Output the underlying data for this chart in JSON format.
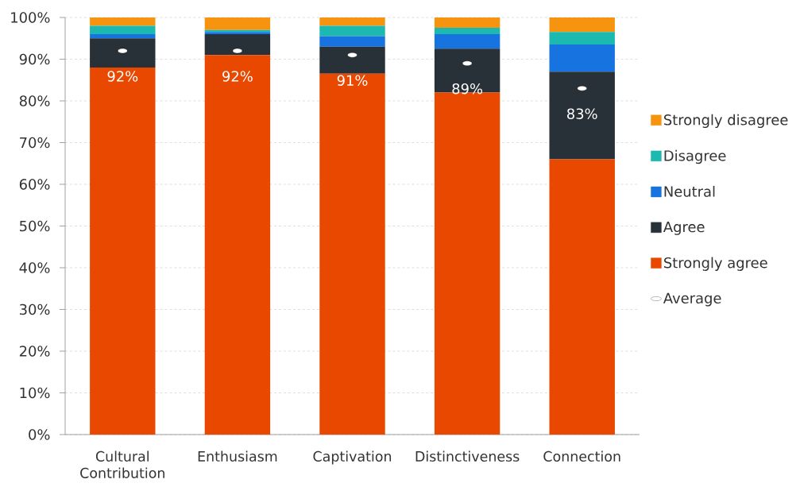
{
  "chart_data": {
    "type": "bar",
    "stacked": true,
    "categories": [
      "Cultural Contribution",
      "Enthusiasm",
      "Captivation",
      "Distinctiveness",
      "Connection"
    ],
    "series": [
      {
        "name": "Strongly agree",
        "color": "#e94800",
        "values": [
          88,
          91,
          86.5,
          82,
          66
        ]
      },
      {
        "name": "Agree",
        "color": "#283038",
        "values": [
          7,
          5,
          6.5,
          10.5,
          21
        ]
      },
      {
        "name": "Neutral",
        "color": "#1673e0",
        "values": [
          1,
          0.5,
          2.5,
          3.5,
          6.5
        ]
      },
      {
        "name": "Disagree",
        "color": "#1cb9b0",
        "values": [
          2,
          0.5,
          2.5,
          1.5,
          3
        ]
      },
      {
        "name": "Strongly disagree",
        "color": "#f7940f",
        "values": [
          2,
          3,
          2,
          2.5,
          3.5
        ]
      },
      {
        "name": "Average",
        "type": "scatter",
        "color": "#ffffff",
        "values": [
          92,
          92,
          91,
          89,
          83
        ],
        "value_labels": [
          "92%",
          "92%",
          "91%",
          "89%",
          "83%"
        ]
      }
    ],
    "ylim": [
      0,
      100
    ],
    "yticks": [
      {
        "value": 0,
        "label": "0%"
      },
      {
        "value": 10,
        "label": "10%"
      },
      {
        "value": 20,
        "label": "20%"
      },
      {
        "value": 30,
        "label": "30%"
      },
      {
        "value": 40,
        "label": "40%"
      },
      {
        "value": 50,
        "label": "50%"
      },
      {
        "value": 60,
        "label": "60%"
      },
      {
        "value": 70,
        "label": "70%"
      },
      {
        "value": 80,
        "label": "80%"
      },
      {
        "value": 90,
        "label": "90%"
      },
      {
        "value": 100,
        "label": "100%"
      }
    ],
    "grid": "y",
    "legend": "right"
  }
}
